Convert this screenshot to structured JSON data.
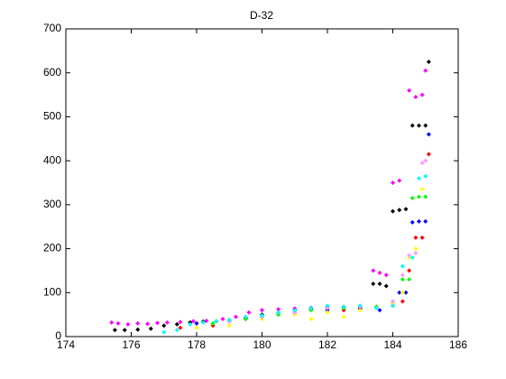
{
  "chart_data": {
    "type": "scatter",
    "title": "D-32",
    "xlim": [
      174,
      186
    ],
    "xticks": [
      174,
      176,
      178,
      180,
      182,
      184,
      186
    ],
    "ylim": [
      0,
      700
    ],
    "yticks": [
      0,
      100,
      200,
      300,
      400,
      500,
      600,
      700
    ],
    "series": [
      {
        "color": "#ff00ff",
        "x": [
          175.4,
          175.6,
          175.9,
          176.2,
          176.5,
          176.8,
          177.1,
          177.5,
          177.9,
          178.3,
          178.8,
          179.2,
          179.6,
          180.0,
          180.5,
          181.0,
          181.5,
          182.0,
          182.5,
          183.0,
          183.4,
          183.6,
          183.8,
          184.0,
          184.2,
          184.5,
          184.7,
          184.9,
          185.0
        ],
        "values": [
          32,
          30,
          28,
          30,
          29,
          31,
          32,
          33,
          35,
          36,
          40,
          45,
          55,
          60,
          62,
          64,
          66,
          68,
          68,
          70,
          150,
          145,
          140,
          350,
          355,
          560,
          545,
          550,
          605
        ]
      },
      {
        "color": "#000000",
        "x": [
          175.5,
          175.8,
          176.2,
          176.6,
          177.0,
          177.4,
          177.8,
          178.2,
          178.6,
          179.0,
          179.5,
          180.0,
          180.5,
          181.0,
          181.5,
          182.0,
          182.5,
          183.0,
          183.4,
          183.6,
          183.8,
          184.0,
          184.2,
          184.4,
          184.6,
          184.8,
          185.0,
          185.1
        ],
        "values": [
          15,
          15,
          16,
          18,
          25,
          28,
          32,
          34,
          35,
          38,
          42,
          50,
          55,
          60,
          62,
          65,
          66,
          68,
          120,
          120,
          115,
          285,
          288,
          290,
          480,
          480,
          480,
          625
        ]
      },
      {
        "color": "#ff0000",
        "x": [
          177.5,
          178.0,
          178.5,
          179.0,
          179.5,
          180.0,
          180.5,
          181.0,
          181.5,
          182.0,
          182.5,
          183.0,
          183.5,
          184.0,
          184.3,
          184.5,
          184.7,
          184.9,
          185.1
        ],
        "values": [
          20,
          30,
          25,
          35,
          40,
          45,
          50,
          55,
          62,
          65,
          60,
          65,
          68,
          70,
          80,
          150,
          225,
          225,
          415
        ]
      },
      {
        "color": "#0000ff",
        "x": [
          178.0,
          179.0,
          180.0,
          181.0,
          182.0,
          183.0,
          183.6,
          184.0,
          184.2,
          184.4,
          184.6,
          184.8,
          185.0,
          185.1
        ],
        "values": [
          30,
          35,
          45,
          55,
          60,
          62,
          60,
          75,
          100,
          100,
          260,
          262,
          262,
          460
        ]
      },
      {
        "color": "#00ff00",
        "x": [
          178.5,
          179.5,
          180.5,
          181.5,
          182.5,
          183.5,
          184.0,
          184.3,
          184.5,
          184.6,
          184.8,
          185.0
        ],
        "values": [
          30,
          40,
          50,
          60,
          65,
          68,
          80,
          130,
          130,
          315,
          318,
          318
        ]
      },
      {
        "color": "#ffff00",
        "x": [
          178.0,
          179.0,
          180.0,
          181.0,
          181.5,
          182.0,
          182.5,
          183.0,
          183.5,
          184.0,
          184.3,
          184.5,
          184.7,
          184.9
        ],
        "values": [
          20,
          25,
          40,
          50,
          40,
          55,
          45,
          60,
          65,
          75,
          100,
          180,
          200,
          335
        ]
      },
      {
        "color": "#ff99ff",
        "x": [
          179.0,
          180.0,
          181.0,
          182.0,
          183.0,
          184.0,
          184.3,
          184.5,
          184.7,
          184.9,
          185.0
        ],
        "values": [
          35,
          45,
          55,
          65,
          68,
          80,
          140,
          185,
          190,
          395,
          400
        ]
      },
      {
        "color": "#00ffff",
        "x": [
          177.0,
          177.4,
          177.8,
          178.2,
          178.6,
          179.0,
          179.5,
          180.0,
          180.5,
          181.0,
          181.5,
          182.0,
          182.5,
          183.0,
          183.5,
          184.0,
          184.3,
          184.6,
          184.8,
          185.0
        ],
        "values": [
          10,
          15,
          28,
          32,
          35,
          38,
          45,
          48,
          55,
          60,
          65,
          70,
          68,
          70,
          65,
          70,
          160,
          180,
          360,
          365
        ]
      }
    ]
  }
}
